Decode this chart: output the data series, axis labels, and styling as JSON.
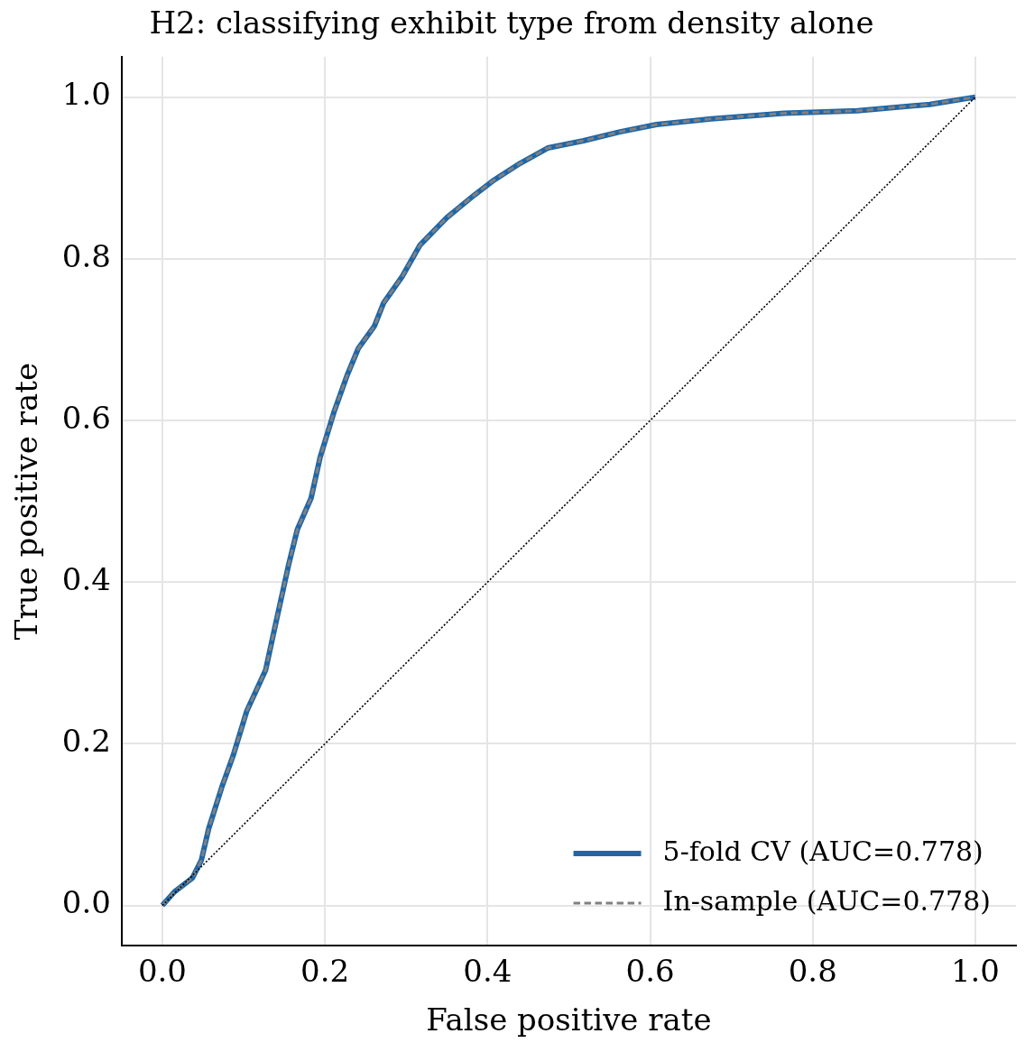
{
  "chart_data": {
    "type": "line",
    "title": "H2: classifying exhibit type from density alone",
    "xlabel": "False positive rate",
    "ylabel": "True positive rate",
    "xlim": [
      -0.05,
      1.05
    ],
    "ylim": [
      -0.05,
      1.05
    ],
    "xticks": [
      {
        "value": 0,
        "label": "0.0"
      },
      {
        "value": 0.2,
        "label": "0.2"
      },
      {
        "value": 0.4,
        "label": "0.4"
      },
      {
        "value": 0.6,
        "label": "0.6"
      },
      {
        "value": 0.8,
        "label": "0.8"
      },
      {
        "value": 1,
        "label": "1.0"
      }
    ],
    "yticks": [
      {
        "value": 0,
        "label": "0.0"
      },
      {
        "value": 0.2,
        "label": "0.2"
      },
      {
        "value": 0.4,
        "label": "0.4"
      },
      {
        "value": 0.6,
        "label": "0.6"
      },
      {
        "value": 0.8,
        "label": "0.8"
      },
      {
        "value": 1,
        "label": "1.0"
      }
    ],
    "grid": true,
    "legend": "bottom right",
    "marker": "none",
    "series": [
      {
        "name": "5-fold CV (AUC=0.778)",
        "color": "#1f67a8",
        "line_style": "solid",
        "x": [
          0,
          0.015,
          0.037,
          0.048,
          0.057,
          0.073,
          0.087,
          0.104,
          0.127,
          0.138,
          0.155,
          0.166,
          0.183,
          0.194,
          0.211,
          0.227,
          0.241,
          0.261,
          0.272,
          0.295,
          0.317,
          0.35,
          0.384,
          0.406,
          0.44,
          0.474,
          0.518,
          0.563,
          0.608,
          0.675,
          0.765,
          0.855,
          0.944,
          1
        ],
        "values": [
          0,
          0.017,
          0.034,
          0.056,
          0.095,
          0.146,
          0.185,
          0.241,
          0.291,
          0.342,
          0.42,
          0.465,
          0.504,
          0.554,
          0.61,
          0.655,
          0.689,
          0.717,
          0.745,
          0.778,
          0.817,
          0.851,
          0.879,
          0.896,
          0.918,
          0.937,
          0.946,
          0.957,
          0.966,
          0.973,
          0.98,
          0.983,
          0.991,
          1
        ]
      },
      {
        "name": "In-sample (AUC=0.778)",
        "color": "#808080",
        "line_style": "dashed",
        "x": [
          0,
          0.015,
          0.037,
          0.048,
          0.057,
          0.073,
          0.087,
          0.104,
          0.127,
          0.138,
          0.155,
          0.166,
          0.183,
          0.194,
          0.211,
          0.227,
          0.241,
          0.261,
          0.272,
          0.295,
          0.317,
          0.35,
          0.384,
          0.406,
          0.44,
          0.474,
          0.518,
          0.563,
          0.608,
          0.675,
          0.765,
          0.855,
          0.944,
          1
        ],
        "values": [
          0,
          0.017,
          0.034,
          0.056,
          0.095,
          0.146,
          0.185,
          0.241,
          0.291,
          0.342,
          0.42,
          0.465,
          0.504,
          0.554,
          0.61,
          0.655,
          0.689,
          0.717,
          0.745,
          0.778,
          0.817,
          0.851,
          0.879,
          0.896,
          0.918,
          0.937,
          0.946,
          0.957,
          0.966,
          0.973,
          0.98,
          0.983,
          0.991,
          1
        ]
      },
      {
        "color": "#000000",
        "line_style": "dotted",
        "x": [
          0,
          1
        ],
        "values": [
          0,
          1
        ]
      }
    ]
  }
}
